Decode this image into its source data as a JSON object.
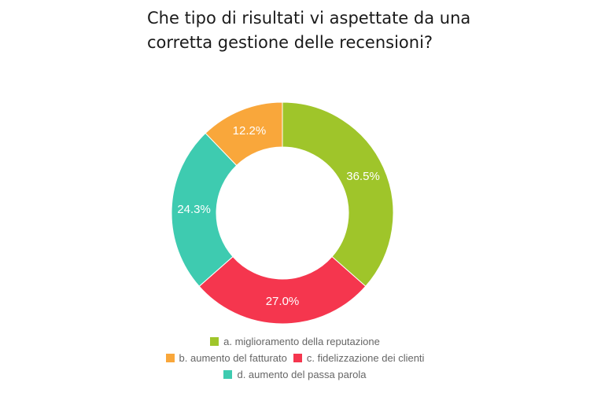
{
  "title_lines": [
    "Che tipo di risultati vi aspettate da una",
    "corretta gestione delle recensioni?"
  ],
  "chart_data": {
    "type": "pie",
    "donut": true,
    "title": "Che tipo di risultati vi aspettate da una corretta gestione delle recensioni?",
    "slices": [
      {
        "label": "a. miglioramento della reputazione",
        "value": 36.5,
        "display": "36.5%",
        "color": "#9fc52a"
      },
      {
        "label": "c. fidelizzazione dei clienti",
        "value": 27.0,
        "display": "27.0%",
        "color": "#f5364e"
      },
      {
        "label": "d. aumento del passa parola",
        "value": 24.3,
        "display": "24.3%",
        "color": "#3ecbb0"
      },
      {
        "label": "b. aumento del fatturato",
        "value": 12.2,
        "display": "12.2%",
        "color": "#f9a73b"
      }
    ],
    "start_angle_deg": 0,
    "direction": "clockwise",
    "legend_position": "bottom",
    "legend_order": [
      [
        "a. miglioramento della reputazione"
      ],
      [
        "b. aumento del fatturato",
        "c. fidelizzazione dei clienti"
      ],
      [
        "d. aumento del passa parola"
      ]
    ]
  }
}
